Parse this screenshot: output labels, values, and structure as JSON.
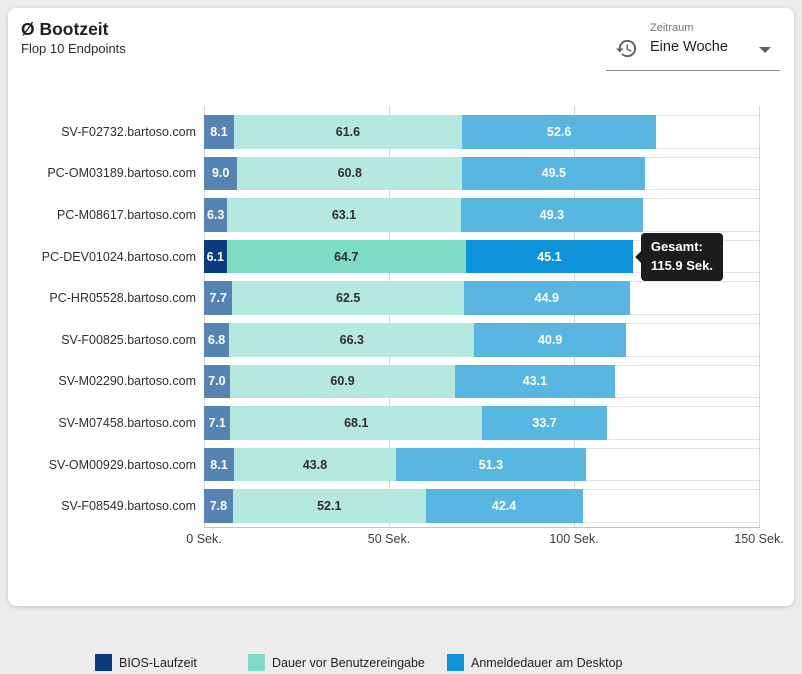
{
  "header": {
    "title": "Ø Bootzeit",
    "subtitle": "Flop 10 Endpoints"
  },
  "period_select": {
    "label": "Zeitraum",
    "value": "Eine Woche",
    "icon": "history-icon",
    "chevron": "chevron-down-icon"
  },
  "chart_data": {
    "type": "bar",
    "orientation": "horizontal",
    "stacked": true,
    "grid": true,
    "legend_position": "bottom",
    "xlim": [
      0,
      150
    ],
    "x_ticks": [
      "0 Sek.",
      "50 Sek.",
      "100 Sek.",
      "150 Sek."
    ],
    "categories": [
      "SV-F02732.bartoso.com",
      "PC-OM03189.bartoso.com",
      "PC-M08617.bartoso.com",
      "PC-DEV01024.bartoso.com",
      "PC-HR05528.bartoso.com",
      "SV-F00825.bartoso.com",
      "SV-M02290.bartoso.com",
      "SV-M07458.bartoso.com",
      "SV-OM00929.bartoso.com",
      "SV-F08549.bartoso.com"
    ],
    "series": [
      {
        "name": "BIOS-Laufzeit",
        "values": [
          8.1,
          9.0,
          6.3,
          6.1,
          7.7,
          6.8,
          7.0,
          7.1,
          8.1,
          7.8
        ],
        "labels": [
          "8.1",
          "9.0",
          "6.3",
          "6.1",
          "7.7",
          "6.8",
          "7.0",
          "7.1",
          "8.1",
          "7.8"
        ]
      },
      {
        "name": "Dauer vor Benutzereingabe",
        "values": [
          61.6,
          60.8,
          63.1,
          64.7,
          62.5,
          66.3,
          60.9,
          68.1,
          43.8,
          52.1
        ],
        "labels": [
          "61.6",
          "60.8",
          "63.1",
          "64.7",
          "62.5",
          "66.3",
          "60.9",
          "68.1",
          "43.8",
          "52.1"
        ]
      },
      {
        "name": "Anmeldedauer am Desktop",
        "values": [
          52.6,
          49.5,
          49.3,
          45.1,
          44.9,
          40.9,
          43.1,
          33.7,
          51.3,
          42.4
        ],
        "labels": [
          "52.6",
          "49.5",
          "49.3",
          "45.1",
          "44.9",
          "40.9",
          "43.1",
          "33.7",
          "51.3",
          "42.4"
        ]
      }
    ],
    "highlighted_index": 3,
    "tooltip": {
      "label": "Gesamt:",
      "value": "115.9 Sek."
    },
    "colors": {
      "normal": [
        "#5584b3",
        "#b5e8de",
        "#57b7e1"
      ],
      "highlight": [
        "#0c3c7f",
        "#7edcc5",
        "#0d93d9"
      ],
      "legend": [
        "#0c3c7f",
        "#7edcc5",
        "#0d93d9"
      ],
      "value_text": [
        "#ffffff",
        "#2e2e2e",
        "#ffffff"
      ],
      "tooltip_bg": "#1c1c1c"
    }
  }
}
